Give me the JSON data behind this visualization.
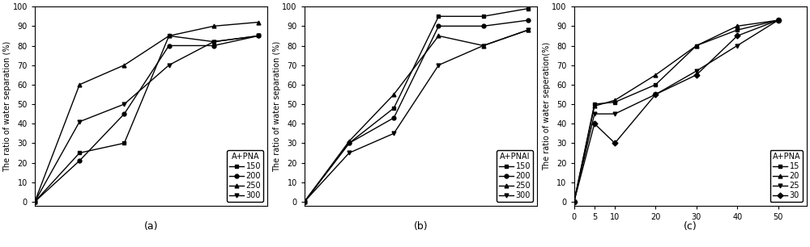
{
  "charts": [
    {
      "title_legend": "A+PNA",
      "ylabel": "The ratio of water separation (%)",
      "xlim": [
        0,
        5.2
      ],
      "ylim": [
        -2,
        100
      ],
      "xticks": [],
      "yticks": [
        0,
        10,
        20,
        30,
        40,
        50,
        60,
        70,
        80,
        90,
        100
      ],
      "legend_labels": [
        "150",
        "200",
        "250",
        "300"
      ],
      "markers": [
        "s",
        "o",
        "^",
        "v"
      ],
      "series_x": [
        [
          0,
          1,
          2,
          3,
          4,
          5
        ],
        [
          0,
          1,
          2,
          3,
          4,
          5
        ],
        [
          0,
          1,
          2,
          3,
          4,
          5
        ],
        [
          0,
          1,
          2,
          3,
          4,
          5
        ]
      ],
      "series_y": [
        [
          0,
          25,
          30,
          85,
          82,
          85
        ],
        [
          0,
          21,
          45,
          80,
          80,
          85
        ],
        [
          0,
          60,
          70,
          85,
          90,
          92
        ],
        [
          0,
          41,
          50,
          70,
          82,
          85
        ]
      ],
      "subplot_label": "(a)"
    },
    {
      "title_legend": "A+PNAI",
      "ylabel": "The ratio of water separation (%)",
      "xlim": [
        0,
        5.2
      ],
      "ylim": [
        -2,
        100
      ],
      "xticks": [],
      "yticks": [
        0,
        10,
        20,
        30,
        40,
        50,
        60,
        70,
        80,
        90,
        100
      ],
      "legend_labels": [
        "150",
        "200",
        "250",
        "300"
      ],
      "markers": [
        "s",
        "o",
        "^",
        "v"
      ],
      "series_x": [
        [
          0,
          1,
          2,
          3,
          4,
          5
        ],
        [
          0,
          1,
          2,
          3,
          4,
          5
        ],
        [
          0,
          1,
          2,
          3,
          4,
          5
        ],
        [
          0,
          1,
          2,
          3,
          4,
          5
        ]
      ],
      "series_y": [
        [
          0,
          30,
          48,
          95,
          95,
          99
        ],
        [
          0,
          30,
          43,
          90,
          90,
          93
        ],
        [
          0,
          31,
          55,
          85,
          80,
          88
        ],
        [
          0,
          25,
          35,
          70,
          80,
          88
        ]
      ],
      "subplot_label": "(b)"
    },
    {
      "title_legend": "A+PNA",
      "ylabel": "The ratio of water seperation(%)",
      "xlim": [
        0,
        57
      ],
      "ylim": [
        -2,
        100
      ],
      "xticks": [
        0,
        5,
        10,
        20,
        30,
        40,
        50
      ],
      "yticks": [
        0,
        10,
        20,
        30,
        40,
        50,
        60,
        70,
        80,
        90,
        100
      ],
      "legend_labels": [
        "15",
        "20",
        "25",
        "30"
      ],
      "markers": [
        "s",
        "^",
        "v",
        "D"
      ],
      "series_x": [
        [
          0,
          5,
          10,
          20,
          30,
          40,
          50
        ],
        [
          0,
          5,
          10,
          20,
          30,
          40,
          50
        ],
        [
          0,
          5,
          10,
          20,
          30,
          40,
          50
        ],
        [
          0,
          5,
          10,
          20,
          30,
          40,
          50
        ]
      ],
      "series_y": [
        [
          0,
          50,
          51,
          60,
          80,
          88,
          93
        ],
        [
          0,
          49,
          52,
          65,
          80,
          90,
          93
        ],
        [
          0,
          45,
          45,
          55,
          67,
          80,
          93
        ],
        [
          0,
          40,
          30,
          55,
          65,
          85,
          93
        ]
      ],
      "subplot_label": "(c)"
    }
  ],
  "line_color": "#000000",
  "background_color": "#ffffff",
  "fontsize_tick": 7,
  "fontsize_legend_title": 7,
  "fontsize_legend": 7,
  "fontsize_ylabel": 7,
  "fontsize_sublabel": 9
}
